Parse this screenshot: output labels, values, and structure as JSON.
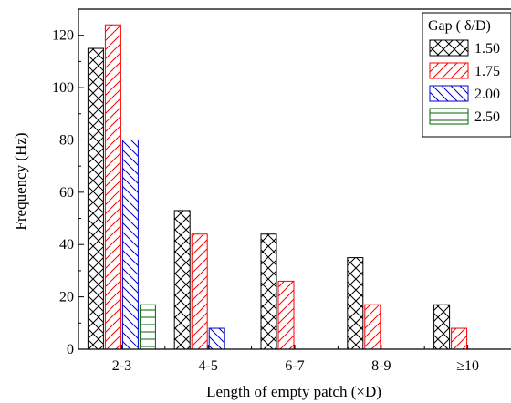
{
  "chart_data": {
    "type": "bar",
    "title": "",
    "xlabel": "Length of empty patch (×D)",
    "ylabel": "Frequency (Hz)",
    "categories": [
      "2-3",
      "4-5",
      "6-7",
      "8-9",
      "≥10"
    ],
    "ylim": [
      0,
      130
    ],
    "yticks": [
      0,
      20,
      40,
      60,
      80,
      100,
      120
    ],
    "grid": false,
    "legend_title": "Gap ( δ/D)",
    "legend_position": "top-right",
    "series": [
      {
        "name": "1.50",
        "color": "#000000",
        "pattern": "crosshatch",
        "values": [
          115,
          53,
          44,
          35,
          17
        ]
      },
      {
        "name": "1.75",
        "color": "#ff0000",
        "pattern": "forward-diagonal",
        "values": [
          124,
          44,
          26,
          17,
          8
        ]
      },
      {
        "name": "2.00",
        "color": "#0000cc",
        "pattern": "back-diagonal",
        "values": [
          80,
          8,
          0,
          0,
          0
        ]
      },
      {
        "name": "2.50",
        "color": "#006600",
        "pattern": "horizontal",
        "values": [
          17,
          0,
          0,
          0,
          0
        ]
      }
    ]
  }
}
